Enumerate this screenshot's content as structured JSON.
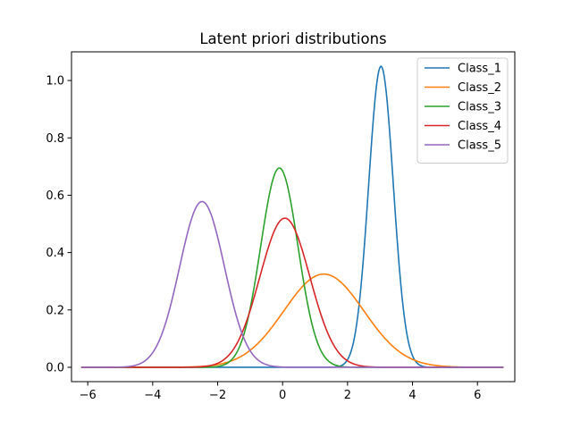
{
  "chart_data": {
    "type": "line",
    "title": "Latent priori distributions",
    "xlabel": "",
    "ylabel": "",
    "xlim": [
      -6.5,
      7.15
    ],
    "ylim": [
      -0.05,
      1.1
    ],
    "x_range": [
      -6.2,
      6.8
    ],
    "xticks": [
      -6,
      -4,
      -2,
      0,
      2,
      4,
      6
    ],
    "xtick_labels": [
      "−6",
      "−4",
      "−2",
      "0",
      "2",
      "4",
      "6"
    ],
    "yticks": [
      0.0,
      0.2,
      0.4,
      0.6,
      0.8,
      1.0
    ],
    "ytick_labels": [
      "0.0",
      "0.2",
      "0.4",
      "0.6",
      "0.8",
      "1.0"
    ],
    "grid": false,
    "legend_position": "top-right",
    "series": [
      {
        "name": "Class_1",
        "color": "#1f77b4",
        "distribution": "normal",
        "mean": 3.03,
        "std": 0.38,
        "peak": 1.05
      },
      {
        "name": "Class_2",
        "color": "#ff7f0e",
        "distribution": "normal",
        "mean": 1.27,
        "std": 1.23,
        "peak": 0.325
      },
      {
        "name": "Class_3",
        "color": "#2ca02c",
        "distribution": "normal",
        "mean": -0.1,
        "std": 0.575,
        "peak": 0.695
      },
      {
        "name": "Class_4",
        "color": "#d62728",
        "distribution": "normal",
        "mean": 0.07,
        "std": 0.77,
        "peak": 0.52
      },
      {
        "name": "Class_5",
        "color": "#9467bd",
        "distribution": "normal",
        "mean": -2.48,
        "std": 0.69,
        "peak": 0.578
      }
    ]
  }
}
